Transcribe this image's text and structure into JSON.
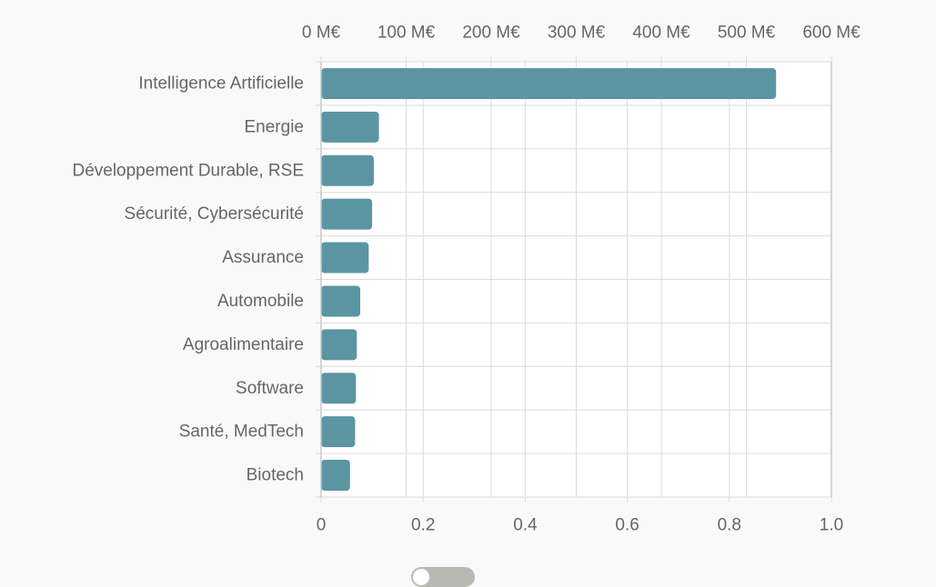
{
  "chart_data": {
    "type": "bar",
    "orientation": "horizontal",
    "categories": [
      "Intelligence Artificielle",
      "Energie",
      "Développement Durable, RSE",
      "Sécurité, Cybersécurité",
      "Assurance",
      "Automobile",
      "Agroalimentaire",
      "Software",
      "Santé, MedTech",
      "Biotech"
    ],
    "values": [
      535,
      68,
      62,
      60,
      56,
      46,
      42,
      41,
      40,
      34
    ],
    "value_unit": "M€",
    "top_axis": {
      "range": [
        0,
        600
      ],
      "ticks": [
        0,
        100,
        200,
        300,
        400,
        500,
        600
      ],
      "tick_labels": [
        "0 M€",
        "100 M€",
        "200 M€",
        "300 M€",
        "400 M€",
        "500 M€",
        "600 M€"
      ]
    },
    "bottom_axis": {
      "range": [
        0,
        1
      ],
      "ticks": [
        0,
        0.2,
        0.4,
        0.6,
        0.8,
        1.0
      ],
      "tick_labels": [
        "0",
        "0.2",
        "0.4",
        "0.6",
        "0.8",
        "1.0"
      ]
    },
    "title": "",
    "xlabel": "",
    "ylabel": "",
    "grid": true,
    "bar_color": "#5b95a4",
    "grid_color": "#dcdcdc",
    "axis_color": "#c8c8c8",
    "label_color": "#666666"
  },
  "toggle": {
    "state": "off"
  }
}
